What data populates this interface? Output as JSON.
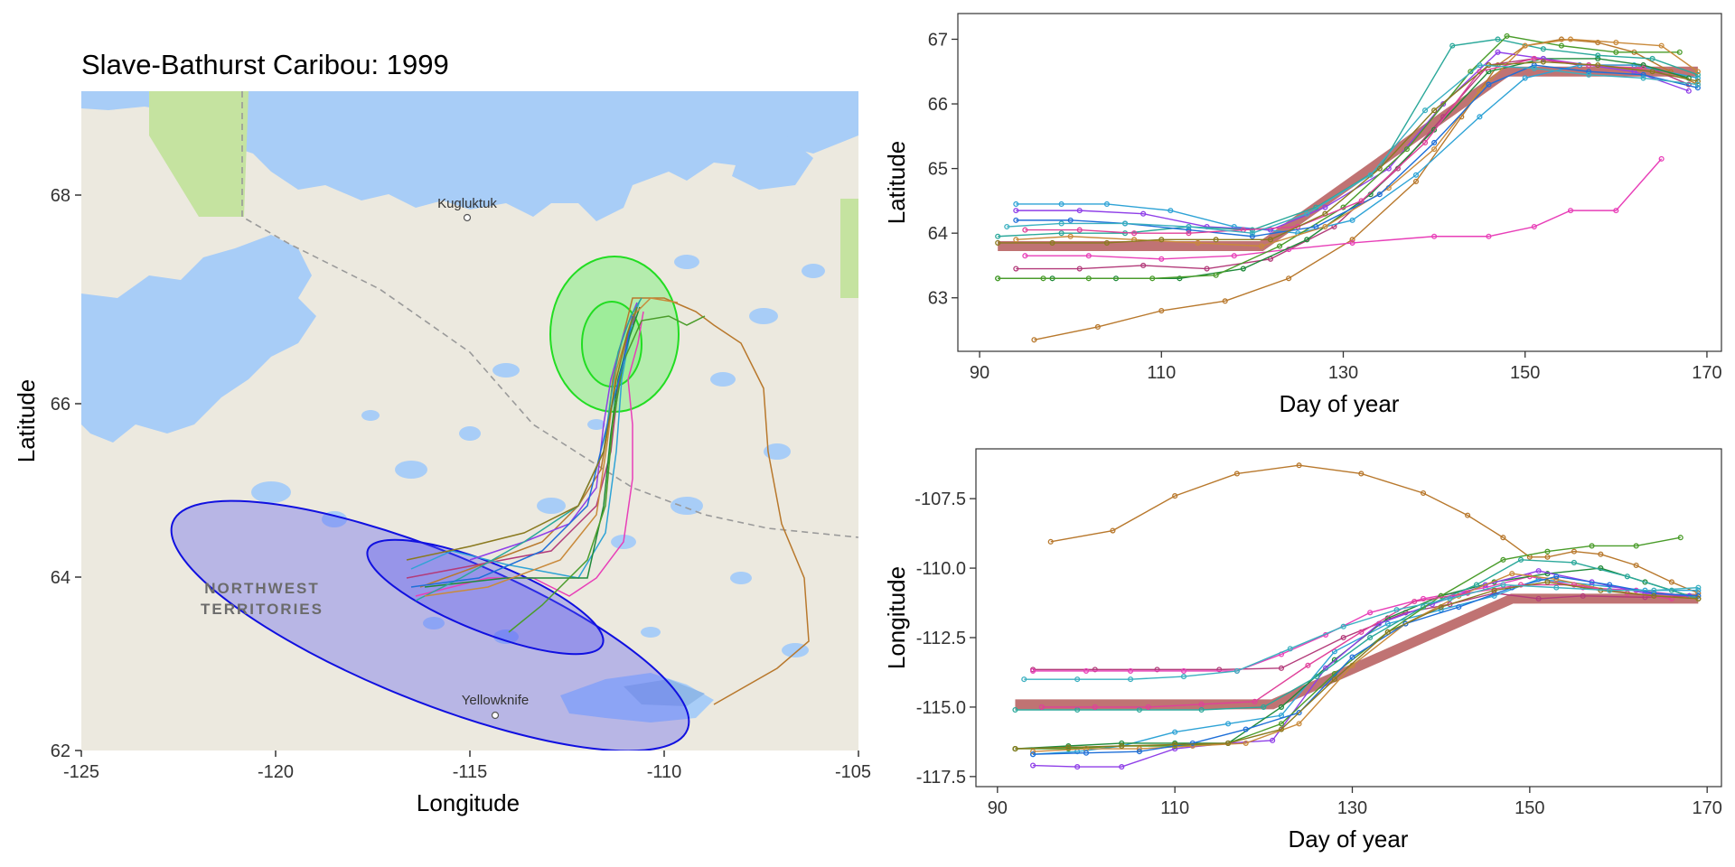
{
  "map": {
    "title": "Slave-Bathurst Caribou: 1999",
    "xlabel": "Longitude",
    "ylabel": "Latitude",
    "x_ticks": [
      "-125",
      "-120",
      "-115",
      "-110",
      "-105"
    ],
    "y_ticks": [
      "62",
      "64",
      "66",
      "68"
    ],
    "places": [
      "Kugluktuk",
      "Yellowknife"
    ],
    "region_label_line1": "NORTHWEST",
    "region_label_line2": "TERRITORIES",
    "colors": {
      "water": "#a8cdf7",
      "land": "#ece9df",
      "park": "#c5e3a0",
      "summer_range": "#7cf07c",
      "winter_range": "#5a5af0"
    }
  },
  "lat_panel": {
    "xlabel": "Day of year",
    "ylabel": "Latitude",
    "x_ticks": [
      "90",
      "110",
      "130",
      "150",
      "170"
    ],
    "y_ticks": [
      "63",
      "64",
      "65",
      "66",
      "67"
    ]
  },
  "lon_panel": {
    "xlabel": "Day of year",
    "ylabel": "Longitude",
    "x_ticks": [
      "90",
      "110",
      "130",
      "150",
      "170"
    ],
    "y_ticks": [
      "-107.5",
      "-110.0",
      "-112.5",
      "-115.0",
      "-117.5"
    ]
  },
  "chart_data": [
    {
      "type": "line",
      "panel": "latitude",
      "xlabel": "Day of year",
      "ylabel": "Latitude",
      "xlim": [
        89,
        171
      ],
      "ylim": [
        62.2,
        67.3
      ],
      "grid": false,
      "mean_curve": {
        "x": [
          92,
          121,
          148,
          169
        ],
        "y": [
          63.8,
          63.8,
          66.5,
          66.5
        ]
      },
      "series": [
        {
          "color": "#b8782c",
          "x": [
            96,
            103,
            110,
            117,
            124,
            131,
            138,
            143,
            147,
            150,
            154,
            158,
            162,
            166,
            169
          ],
          "y": [
            62.35,
            62.55,
            62.8,
            62.95,
            63.3,
            63.9,
            64.8,
            65.8,
            66.6,
            66.9,
            67.0,
            66.95,
            66.8,
            66.5,
            66.3
          ]
        },
        {
          "color": "#b33b7a",
          "x": [
            94,
            101,
            108,
            115,
            122,
            129,
            136,
            141,
            146,
            151,
            156,
            163,
            168
          ],
          "y": [
            63.45,
            63.45,
            63.5,
            63.45,
            63.6,
            64.1,
            65.0,
            65.8,
            66.6,
            66.7,
            66.6,
            66.6,
            66.3
          ]
        },
        {
          "color": "#e83fb8",
          "x": [
            95,
            102,
            110,
            118,
            124,
            131,
            140,
            146,
            151,
            155,
            160,
            165
          ],
          "y": [
            63.65,
            63.65,
            63.6,
            63.65,
            63.75,
            63.85,
            63.95,
            63.95,
            64.1,
            64.35,
            64.35,
            65.15
          ]
        },
        {
          "color": "#2ea3d6",
          "x": [
            94,
            99,
            104,
            111,
            118,
            125,
            131,
            138,
            145,
            150,
            156,
            162,
            169
          ],
          "y": [
            64.45,
            64.45,
            64.45,
            64.35,
            64.1,
            64.0,
            64.2,
            64.9,
            65.8,
            66.4,
            66.6,
            66.6,
            66.4
          ]
        },
        {
          "color": "#1f8a3a",
          "x": [
            92,
            98,
            105,
            112,
            119,
            126,
            133,
            140,
            146,
            152,
            158,
            163,
            168
          ],
          "y": [
            63.3,
            63.3,
            63.3,
            63.3,
            63.45,
            63.9,
            64.6,
            65.6,
            66.5,
            66.7,
            66.7,
            66.6,
            66.4
          ]
        },
        {
          "color": "#8f3fe8",
          "x": [
            94,
            101,
            108,
            115,
            122,
            128,
            135,
            141,
            147,
            152,
            157,
            162,
            168
          ],
          "y": [
            64.35,
            64.35,
            64.3,
            64.1,
            64.05,
            64.4,
            65.0,
            66.0,
            66.8,
            66.7,
            66.6,
            66.5,
            66.2
          ]
        },
        {
          "color": "#2aa89a",
          "x": [
            92,
            99,
            106,
            113,
            120,
            127,
            134,
            142,
            147,
            152,
            158,
            164,
            169
          ],
          "y": [
            63.95,
            64.0,
            64.0,
            64.1,
            64.05,
            64.4,
            65.0,
            66.9,
            67.0,
            66.85,
            66.75,
            66.7,
            66.45
          ]
        },
        {
          "color": "#4a9c2a",
          "x": [
            92,
            97,
            102,
            109,
            116,
            123,
            130,
            137,
            144,
            148,
            154,
            160,
            167
          ],
          "y": [
            63.3,
            63.3,
            63.3,
            63.3,
            63.35,
            63.8,
            64.4,
            65.3,
            66.5,
            67.05,
            66.9,
            66.8,
            66.8
          ]
        },
        {
          "color": "#c98a3b",
          "x": [
            94,
            100,
            107,
            114,
            121,
            128,
            135,
            140,
            145,
            150,
            155,
            160,
            165,
            169
          ],
          "y": [
            63.9,
            63.95,
            63.9,
            63.85,
            63.8,
            64.1,
            64.7,
            65.3,
            66.2,
            66.9,
            67.0,
            66.95,
            66.9,
            66.5
          ]
        },
        {
          "color": "#1e6fd8",
          "x": [
            94,
            100,
            106,
            113,
            120,
            127,
            134,
            140,
            146,
            151,
            157,
            163,
            169
          ],
          "y": [
            64.2,
            64.2,
            64.15,
            64.05,
            63.95,
            64.1,
            64.6,
            65.4,
            66.3,
            66.6,
            66.5,
            66.45,
            66.25
          ]
        },
        {
          "color": "#e0409a",
          "x": [
            95,
            101,
            107,
            113,
            119,
            125,
            132,
            139,
            145,
            151,
            157,
            163
          ],
          "y": [
            64.05,
            64.05,
            64.0,
            64.0,
            64.05,
            64.1,
            64.5,
            65.4,
            66.5,
            66.7,
            66.6,
            66.55
          ]
        },
        {
          "color": "#8a7a1f",
          "x": [
            92,
            98,
            104,
            110,
            116,
            122,
            128,
            134,
            140,
            146,
            152,
            158,
            164,
            169
          ],
          "y": [
            63.85,
            63.85,
            63.85,
            63.9,
            63.9,
            63.9,
            64.3,
            65.0,
            65.9,
            66.6,
            66.65,
            66.6,
            66.5,
            66.35
          ]
        },
        {
          "color": "#3bb0c0",
          "x": [
            93,
            99,
            106,
            113,
            120,
            126,
            133,
            139,
            145,
            151,
            157,
            163,
            169
          ],
          "y": [
            64.1,
            64.15,
            64.15,
            64.1,
            64.0,
            64.3,
            64.9,
            65.9,
            66.6,
            66.55,
            66.45,
            66.4,
            66.3
          ]
        }
      ]
    },
    {
      "type": "line",
      "panel": "longitude",
      "xlabel": "Day of year",
      "ylabel": "Longitude",
      "xlim": [
        89,
        171
      ],
      "ylim": [
        -117.7,
        -106
      ],
      "grid": false,
      "mean_curve": {
        "x": [
          92,
          121,
          148,
          169
        ],
        "y": [
          -114.9,
          -114.9,
          -111.1,
          -111.1
        ]
      },
      "series": [
        {
          "color": "#b8782c",
          "x": [
            96,
            103,
            110,
            117,
            124,
            131,
            138,
            143,
            147,
            150,
            152,
            155,
            158,
            162,
            166,
            169
          ],
          "y": [
            -109.05,
            -108.65,
            -107.4,
            -106.6,
            -106.3,
            -106.6,
            -107.3,
            -108.1,
            -108.9,
            -109.6,
            -109.6,
            -109.4,
            -109.5,
            -109.9,
            -110.5,
            -110.9
          ]
        },
        {
          "color": "#b33b7a",
          "x": [
            94,
            101,
            108,
            115,
            122,
            129,
            136,
            141,
            146,
            151,
            156,
            163,
            168
          ],
          "y": [
            -113.65,
            -113.65,
            -113.65,
            -113.65,
            -113.6,
            -112.5,
            -111.6,
            -111.3,
            -110.9,
            -111.1,
            -111.0,
            -111.05,
            -111.0
          ]
        },
        {
          "color": "#e83fb8",
          "x": [
            94,
            100,
            105,
            111,
            117,
            122,
            127,
            132,
            138,
            145,
            150,
            156,
            162,
            168
          ],
          "y": [
            -113.7,
            -113.7,
            -113.7,
            -113.7,
            -113.7,
            -113.1,
            -112.4,
            -111.6,
            -111.1,
            -110.7,
            -110.3,
            -110.7,
            -110.8,
            -111.0
          ]
        },
        {
          "color": "#2ea3d6",
          "x": [
            94,
            99,
            104,
            110,
            116,
            122,
            128,
            134,
            140,
            146,
            151,
            157,
            163,
            169
          ],
          "y": [
            -116.7,
            -116.6,
            -116.4,
            -115.9,
            -115.6,
            -115.3,
            -113.0,
            -112.0,
            -111.5,
            -111.0,
            -110.4,
            -110.6,
            -110.8,
            -110.8
          ]
        },
        {
          "color": "#1f8a3a",
          "x": [
            92,
            98,
            104,
            110,
            116,
            122,
            128,
            134,
            140,
            146,
            152,
            158,
            163,
            168
          ],
          "y": [
            -116.5,
            -116.4,
            -116.3,
            -116.3,
            -116.3,
            -115.0,
            -113.3,
            -111.8,
            -111.0,
            -110.5,
            -110.2,
            -110.0,
            -110.5,
            -111.0
          ]
        },
        {
          "color": "#8f3fe8",
          "x": [
            94,
            99,
            104,
            110,
            116,
            121,
            127,
            133,
            139,
            145,
            151,
            157,
            163,
            168
          ],
          "y": [
            -117.1,
            -117.15,
            -117.15,
            -116.5,
            -116.3,
            -116.2,
            -113.6,
            -112.0,
            -111.3,
            -110.6,
            -110.1,
            -110.5,
            -110.9,
            -111.0
          ]
        },
        {
          "color": "#2aa89a",
          "x": [
            92,
            99,
            106,
            113,
            120,
            126,
            132,
            138,
            144,
            149,
            155,
            161,
            166,
            169
          ],
          "y": [
            -115.1,
            -115.1,
            -115.1,
            -115.1,
            -115.0,
            -113.9,
            -112.5,
            -111.4,
            -110.6,
            -109.7,
            -109.8,
            -110.3,
            -110.8,
            -111.1
          ]
        },
        {
          "color": "#4a9c2a",
          "x": [
            92,
            98,
            104,
            110,
            116,
            122,
            128,
            134,
            140,
            147,
            152,
            157,
            162,
            167
          ],
          "y": [
            -116.5,
            -116.5,
            -116.4,
            -116.4,
            -116.3,
            -115.6,
            -113.8,
            -112.3,
            -111.0,
            -109.7,
            -109.4,
            -109.2,
            -109.2,
            -108.9
          ]
        },
        {
          "color": "#c98a3b",
          "x": [
            94,
            100,
            106,
            112,
            118,
            124,
            130,
            136,
            142,
            148,
            153,
            159,
            164,
            169
          ],
          "y": [
            -116.6,
            -116.5,
            -116.5,
            -116.4,
            -116.3,
            -115.6,
            -113.5,
            -112.0,
            -111.0,
            -110.2,
            -110.4,
            -110.8,
            -111.0,
            -111.1
          ]
        },
        {
          "color": "#1e6fd8",
          "x": [
            94,
            100,
            106,
            112,
            118,
            124,
            130,
            136,
            142,
            148,
            153,
            159,
            164,
            169
          ],
          "y": [
            -116.7,
            -116.65,
            -116.6,
            -116.3,
            -115.8,
            -115.2,
            -113.2,
            -112.0,
            -111.4,
            -110.7,
            -110.3,
            -110.6,
            -110.9,
            -111.0
          ]
        },
        {
          "color": "#e0409a",
          "x": [
            95,
            101,
            107,
            113,
            119,
            125,
            131,
            137,
            143,
            149,
            155,
            161,
            166
          ],
          "y": [
            -115.0,
            -115.0,
            -115.0,
            -114.9,
            -114.8,
            -113.5,
            -112.3,
            -111.2,
            -110.9,
            -110.6,
            -110.6,
            -110.9,
            -111.1
          ]
        },
        {
          "color": "#8a7a1f",
          "x": [
            92,
            98,
            104,
            110,
            116,
            122,
            128,
            134,
            140,
            146,
            152,
            158,
            164,
            169
          ],
          "y": [
            -116.5,
            -116.45,
            -116.4,
            -116.35,
            -116.3,
            -115.8,
            -114.0,
            -112.3,
            -111.4,
            -110.8,
            -110.5,
            -110.8,
            -111.0,
            -111.1
          ]
        },
        {
          "color": "#3bb0c0",
          "x": [
            93,
            99,
            105,
            111,
            117,
            123,
            129,
            135,
            141,
            147,
            153,
            159,
            164,
            169
          ],
          "y": [
            -114.0,
            -114.0,
            -114.0,
            -113.9,
            -113.7,
            -112.9,
            -112.1,
            -111.5,
            -111.1,
            -110.6,
            -110.7,
            -110.8,
            -110.8,
            -110.7
          ]
        }
      ]
    }
  ]
}
